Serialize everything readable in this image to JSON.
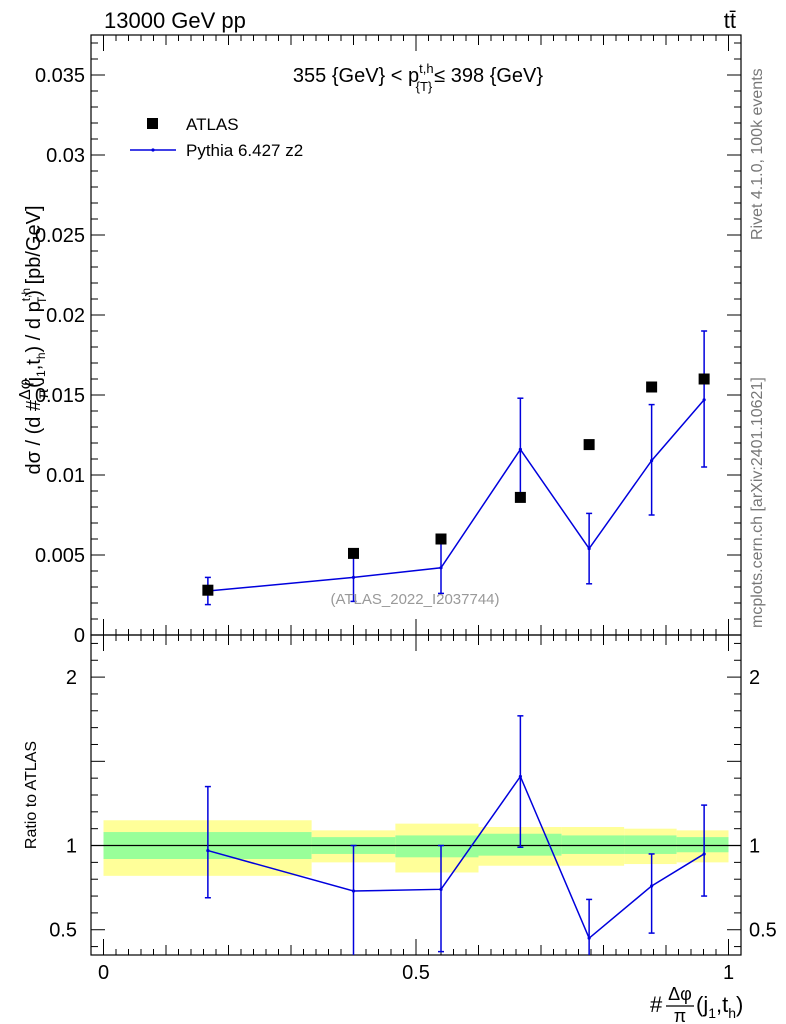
{
  "header": {
    "left": "13000 GeV pp",
    "right": "tt̄"
  },
  "side_labels": {
    "rivet": "Rivet 4.1.0,  100k events",
    "mcplots": "mcplots.cern.ch [arXiv:2401.10621]"
  },
  "chart_data": [
    {
      "type": "line",
      "panel": "main",
      "title": "355 {GeV} < p_{T}^{t,h} ≤ 398 {GeV}",
      "ylabel": "dσ / (d #Δφ/π(j_1,t_h) / d p_T^{t,h}) [pb/GeV]",
      "analysis_label": "(ATLAS_2022_I2037744)",
      "xlim": [
        -0.02,
        1.02
      ],
      "ylim": [
        0,
        0.0375
      ],
      "yticks": [
        0,
        0.005,
        0.01,
        0.015,
        0.02,
        0.025,
        0.03,
        0.035
      ],
      "ytick_labels": [
        "0",
        "0.005",
        "0.01",
        "0.015",
        "0.02",
        "0.025",
        "0.03",
        "0.035"
      ],
      "legend": {
        "position": "top-left",
        "entries": [
          "ATLAS",
          "Pythia 6.427 z2"
        ]
      },
      "series": [
        {
          "name": "ATLAS",
          "style": "markers",
          "color": "#000000",
          "x": [
            0.167,
            0.4,
            0.54,
            0.667,
            0.777,
            0.877,
            0.961
          ],
          "y": [
            0.0028,
            0.0051,
            0.006,
            0.0086,
            0.0119,
            0.0155,
            0.016
          ]
        },
        {
          "name": "Pythia 6.427 z2",
          "style": "line",
          "color": "#0000dd",
          "x": [
            0.167,
            0.4,
            0.54,
            0.667,
            0.777,
            0.877,
            0.961
          ],
          "y": [
            0.00275,
            0.0036,
            0.0042,
            0.0116,
            0.0054,
            0.0109,
            0.0147
          ],
          "err_low": [
            0.0019,
            0.0021,
            0.0026,
            0.0085,
            0.0032,
            0.0075,
            0.0105
          ],
          "err_high": [
            0.0036,
            0.0051,
            0.0059,
            0.0148,
            0.0076,
            0.0144,
            0.019
          ]
        }
      ]
    },
    {
      "type": "line",
      "panel": "ratio",
      "ylabel": "Ratio to ATLAS",
      "xlabel": "#Δφ/π(j_1,t_h)",
      "xlim": [
        -0.02,
        1.02
      ],
      "ylim": [
        0.35,
        2.25
      ],
      "xticks": [
        0,
        0.5,
        1
      ],
      "xtick_labels": [
        "0",
        "0.5",
        "1"
      ],
      "yticks": [
        0.5,
        1,
        2
      ],
      "ytick_labels": [
        "0.5",
        "1",
        "2"
      ],
      "bands": {
        "bin_edges": [
          0,
          0.333,
          0.467,
          0.6,
          0.733,
          0.833,
          0.917,
          1.0
        ],
        "total_low": [
          0.82,
          0.9,
          0.84,
          0.88,
          0.88,
          0.89,
          0.9
        ],
        "total_high": [
          1.15,
          1.09,
          1.13,
          1.11,
          1.11,
          1.1,
          1.09
        ],
        "stat_low": [
          0.92,
          0.95,
          0.93,
          0.94,
          0.95,
          0.95,
          0.96
        ],
        "stat_high": [
          1.08,
          1.05,
          1.06,
          1.07,
          1.06,
          1.06,
          1.05
        ],
        "stat_color": "#99ff99",
        "total_color": "#ffff99"
      },
      "series": [
        {
          "name": "Pythia 6.427 z2 / ATLAS",
          "color": "#0000dd",
          "x": [
            0.167,
            0.4,
            0.54,
            0.667,
            0.777,
            0.877,
            0.961
          ],
          "y": [
            0.97,
            0.73,
            0.74,
            1.41,
            0.45,
            0.76,
            0.95
          ],
          "err_low": [
            0.69,
            0.35,
            0.37,
            0.99,
            0.35,
            0.48,
            0.7
          ],
          "err_high": [
            1.35,
            1.0,
            1.0,
            1.77,
            0.68,
            0.95,
            1.24
          ]
        }
      ]
    }
  ]
}
